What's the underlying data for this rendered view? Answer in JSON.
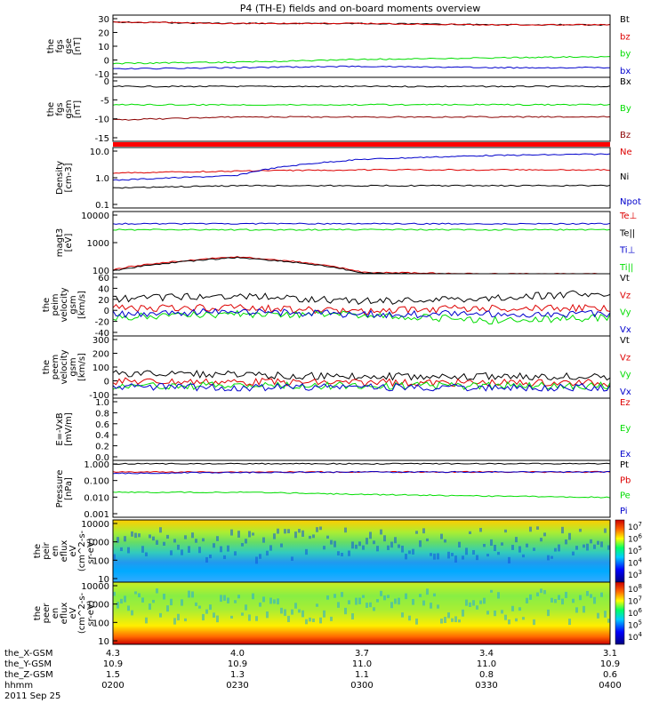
{
  "title": "P4 (TH-E) fields and on-board moments overview",
  "colors": {
    "black": "#000000",
    "red": "#dd0000",
    "green": "#00dd00",
    "blue": "#0000cc",
    "brown": "#8b0000"
  },
  "x_axis": {
    "rows": [
      {
        "label": "the_X-GSM",
        "values": [
          "4.3",
          "4.0",
          "3.7",
          "3.4",
          "3.1"
        ]
      },
      {
        "label": "the_Y-GSM",
        "values": [
          "10.9",
          "10.9",
          "11.0",
          "11.0",
          "10.9"
        ]
      },
      {
        "label": "the_Z-GSM",
        "values": [
          "1.5",
          "1.3",
          "1.1",
          "0.8",
          "0.6"
        ]
      },
      {
        "label": "hhmm",
        "values": [
          "0200",
          "0230",
          "0300",
          "0330",
          "0400"
        ]
      }
    ],
    "date": "2011 Sep 25"
  },
  "chart_data": [
    {
      "type": "line",
      "ylabel": [
        "the",
        "fgs",
        "gse",
        "[nT]"
      ],
      "yticks": [
        "30",
        "20",
        "10",
        "0",
        "-10"
      ],
      "ylim": [
        -13,
        32
      ],
      "series": [
        {
          "name": "Bt",
          "color": "#000000",
          "values": [
            27,
            26,
            26,
            25,
            25
          ]
        },
        {
          "name": "bz",
          "color": "#dd0000",
          "values": [
            27,
            26,
            26,
            25,
            25
          ]
        },
        {
          "name": "by",
          "color": "#00dd00",
          "values": [
            -3,
            -2,
            0,
            1,
            2
          ]
        },
        {
          "name": "bx",
          "color": "#0000cc",
          "values": [
            -7,
            -6,
            -5,
            -6,
            -6
          ]
        }
      ]
    },
    {
      "type": "line",
      "ylabel": [
        "the",
        "fgs",
        "gsm",
        "[nT]"
      ],
      "yticks": [
        "0",
        "-5",
        "-10",
        "-15"
      ],
      "ylim": [
        -18,
        3
      ],
      "series": [
        {
          "name": "Bx",
          "color": "#000000",
          "values": [
            0,
            0,
            0,
            0,
            0
          ]
        },
        {
          "name": "By",
          "color": "#00dd00",
          "values": [
            -6,
            -6,
            -6,
            -6,
            -6
          ]
        },
        {
          "name": "Bz",
          "color": "#8b0000",
          "values": [
            -11,
            -10,
            -10,
            -10,
            -10
          ]
        }
      ]
    },
    {
      "type": "line",
      "ylabel": [
        "Density",
        "[cm-3]"
      ],
      "yticks": [
        "10.0",
        "1.0",
        "0.1"
      ],
      "scale": "log",
      "series": [
        {
          "name": "Ne",
          "color": "#dd0000",
          "values": [
            1.5,
            1.8,
            2,
            2,
            2
          ]
        },
        {
          "name": "Ni",
          "color": "#000000",
          "values": [
            0.4,
            0.5,
            0.5,
            0.5,
            0.5
          ]
        },
        {
          "name": "Npot",
          "color": "#0000cc",
          "values": [
            0.8,
            1.2,
            5,
            7,
            8
          ]
        }
      ]
    },
    {
      "type": "line",
      "ylabel": [
        "magt3",
        "[eV]"
      ],
      "yticks": [
        "10000",
        "1000",
        "100"
      ],
      "scale": "log",
      "series": [
        {
          "name": "Te⊥",
          "color": "#dd0000",
          "values": [
            100,
            300,
            80,
            70,
            70
          ]
        },
        {
          "name": "Te||",
          "color": "#000000",
          "values": [
            90,
            280,
            75,
            65,
            65
          ]
        },
        {
          "name": "Ti⊥",
          "color": "#0000cc",
          "values": [
            5000,
            5000,
            5000,
            5000,
            5000
          ]
        },
        {
          "name": "Ti||",
          "color": "#00dd00",
          "values": [
            3000,
            3000,
            3000,
            3000,
            3000
          ]
        }
      ]
    },
    {
      "type": "line",
      "ylabel": [
        "the",
        "peim",
        "velocity",
        "gsm",
        "[km/s]"
      ],
      "yticks": [
        "60",
        "40",
        "20",
        "0",
        "-20",
        "-40"
      ],
      "ylim": [
        -40,
        60
      ],
      "series": [
        {
          "name": "Vt",
          "color": "#000000",
          "values": [
            20,
            25,
            15,
            20,
            30
          ]
        },
        {
          "name": "Vz",
          "color": "#dd0000",
          "values": [
            5,
            5,
            0,
            5,
            5
          ]
        },
        {
          "name": "Vy",
          "color": "#00dd00",
          "values": [
            -10,
            -5,
            -5,
            -15,
            -10
          ]
        },
        {
          "name": "Vx",
          "color": "#0000cc",
          "values": [
            -5,
            0,
            -5,
            -5,
            -5
          ]
        }
      ]
    },
    {
      "type": "line",
      "ylabel": [
        "the",
        "peem",
        "velocity",
        "gsm",
        "[km/s]"
      ],
      "yticks": [
        "300",
        "200",
        "100",
        "0",
        "-100"
      ],
      "ylim": [
        -100,
        300
      ],
      "series": [
        {
          "name": "Vt",
          "color": "#000000",
          "values": [
            60,
            50,
            40,
            40,
            40
          ]
        },
        {
          "name": "Vz",
          "color": "#dd0000",
          "values": [
            10,
            5,
            0,
            0,
            0
          ]
        },
        {
          "name": "Vy",
          "color": "#00dd00",
          "values": [
            -20,
            -20,
            -20,
            -20,
            -20
          ]
        },
        {
          "name": "Vx",
          "color": "#0000cc",
          "values": [
            -30,
            -30,
            -30,
            -30,
            -30
          ]
        }
      ]
    },
    {
      "type": "line",
      "ylabel": [
        "E=-VxB",
        "[mV/m]"
      ],
      "yticks": [
        "1.0",
        "0.8",
        "0.6",
        "0.4",
        "0.2",
        "0.0"
      ],
      "ylim": [
        0,
        1
      ],
      "series": [
        {
          "name": "Ez",
          "color": "#dd0000",
          "values": []
        },
        {
          "name": "Ey",
          "color": "#00dd00",
          "values": []
        },
        {
          "name": "Ex",
          "color": "#0000cc",
          "values": []
        }
      ]
    },
    {
      "type": "line",
      "ylabel": [
        "Pressure",
        "[nPa]"
      ],
      "yticks": [
        "1.000",
        "0.100",
        "0.010",
        "0.001"
      ],
      "scale": "log",
      "series": [
        {
          "name": "Pt",
          "color": "#000000",
          "values": [
            0.9,
            0.9,
            0.9,
            0.9,
            0.9
          ]
        },
        {
          "name": "Pb",
          "color": "#dd0000",
          "values": [
            0.3,
            0.3,
            0.3,
            0.3,
            0.3
          ]
        },
        {
          "name": "Pe",
          "color": "#00dd00",
          "values": [
            0.02,
            0.02,
            0.015,
            0.012,
            0.01
          ]
        },
        {
          "name": "Pi",
          "color": "#0000cc",
          "values": [
            0.25,
            0.28,
            0.3,
            0.3,
            0.3
          ]
        }
      ]
    },
    {
      "type": "heatmap",
      "ylabel": [
        "the",
        "peir",
        "en",
        "eflux",
        "eV",
        "(cm^2-s-",
        "sr-eV)"
      ],
      "yticks": [
        "10000",
        "1000",
        "100",
        "10"
      ],
      "colorbar": [
        "10^7",
        "10^6",
        "10^5",
        "10^4",
        "10^3"
      ]
    },
    {
      "type": "heatmap",
      "ylabel": [
        "the",
        "peer",
        "en",
        "eflux",
        "eV",
        "(cm^2-s-",
        "sr-eV)"
      ],
      "yticks": [
        "10000",
        "1000",
        "100",
        "10"
      ],
      "colorbar": [
        "10^8",
        "10^7",
        "10^6",
        "10^5",
        "10^4"
      ]
    }
  ]
}
